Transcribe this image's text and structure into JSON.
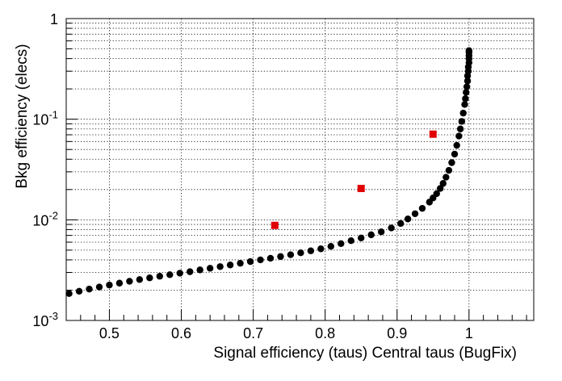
{
  "chart_data": {
    "type": "scatter",
    "xlabel": "Signal efficiency (taus) Central taus (BugFix)",
    "ylabel": "Bkg efficiency (elecs)",
    "xlim": [
      0.44,
      1.09
    ],
    "ylim": [
      0.001,
      1
    ],
    "yscale": "log",
    "grid": true,
    "x_ticks": [
      {
        "value": 0.5,
        "label": "0.5"
      },
      {
        "value": 0.6,
        "label": "0.6"
      },
      {
        "value": 0.7,
        "label": "0.7"
      },
      {
        "value": 0.8,
        "label": "0.8"
      },
      {
        "value": 0.9,
        "label": "0.9"
      },
      {
        "value": 1.0,
        "label": "1"
      }
    ],
    "y_ticks": [
      {
        "value": 1,
        "base": "1",
        "exp": ""
      },
      {
        "value": 0.1,
        "base": "10",
        "exp": "-1"
      },
      {
        "value": 0.01,
        "base": "10",
        "exp": "-2"
      },
      {
        "value": 0.001,
        "base": "10",
        "exp": "-3"
      }
    ],
    "series": [
      {
        "color": "#000000",
        "marker": "circle",
        "x": [
          0.444,
          0.458,
          0.472,
          0.486,
          0.5,
          0.514,
          0.528,
          0.542,
          0.556,
          0.57,
          0.584,
          0.598,
          0.612,
          0.626,
          0.64,
          0.654,
          0.668,
          0.682,
          0.696,
          0.71,
          0.724,
          0.738,
          0.752,
          0.766,
          0.78,
          0.794,
          0.808,
          0.822,
          0.836,
          0.85,
          0.864,
          0.878,
          0.892,
          0.905,
          0.915,
          0.925,
          0.935,
          0.945,
          0.95,
          0.955,
          0.96,
          0.964,
          0.968,
          0.972,
          0.976,
          0.98,
          0.983,
          0.986,
          0.988,
          0.99,
          0.992,
          0.994,
          0.995,
          0.996,
          0.997,
          0.998,
          0.998,
          0.999,
          0.999,
          1.0,
          1.0,
          1.0,
          1.0,
          1.0
        ],
        "y": [
          0.00185,
          0.00195,
          0.00205,
          0.00215,
          0.00225,
          0.00235,
          0.00245,
          0.00255,
          0.00265,
          0.00275,
          0.00285,
          0.00295,
          0.00305,
          0.00318,
          0.0033,
          0.00343,
          0.00356,
          0.0037,
          0.00385,
          0.004,
          0.00415,
          0.00432,
          0.0045,
          0.0047,
          0.00492,
          0.00515,
          0.00545,
          0.0058,
          0.0062,
          0.0066,
          0.0071,
          0.0076,
          0.0083,
          0.0092,
          0.0102,
          0.0115,
          0.013,
          0.015,
          0.0165,
          0.0182,
          0.0205,
          0.023,
          0.0265,
          0.031,
          0.037,
          0.045,
          0.055,
          0.068,
          0.08,
          0.095,
          0.115,
          0.14,
          0.16,
          0.185,
          0.21,
          0.24,
          0.27,
          0.3,
          0.33,
          0.365,
          0.4,
          0.43,
          0.46,
          0.48
        ]
      },
      {
        "color": "#e00000",
        "marker": "square",
        "x": [
          0.73,
          0.85,
          0.95
        ],
        "y": [
          0.0088,
          0.0205,
          0.071
        ]
      }
    ]
  }
}
